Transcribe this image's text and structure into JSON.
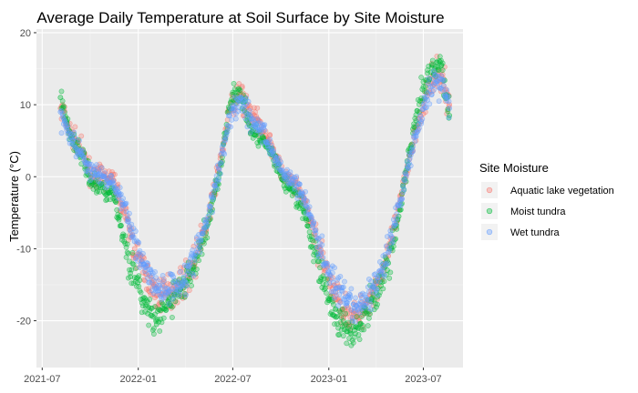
{
  "chart_data": {
    "type": "scatter",
    "title": "Average Daily Temperature at Soil Surface by Site Moisture",
    "xlabel": "",
    "ylabel": "Temperature (°C)",
    "x_ticks": [
      "2021-07",
      "2022-01",
      "2022-07",
      "2023-01",
      "2023-07"
    ],
    "y_ticks": [
      -20,
      -10,
      0,
      10,
      20
    ],
    "xlim": [
      "2021-06-20",
      "2023-09-15"
    ],
    "ylim": [
      -26.5,
      20.5
    ],
    "grid": true,
    "legend": {
      "title": "Site Moisture",
      "position": "right"
    },
    "series": [
      {
        "name": "Aquatic lake vegetation",
        "color": "#F8766D",
        "x": [
          "2021-08-05",
          "2021-08-25",
          "2021-09-15",
          "2021-10-05",
          "2021-10-25",
          "2021-11-15",
          "2021-12-05",
          "2021-12-25",
          "2022-01-15",
          "2022-02-05",
          "2022-02-25",
          "2022-03-15",
          "2022-04-05",
          "2022-04-25",
          "2022-05-15",
          "2022-06-05",
          "2022-06-25",
          "2022-07-15",
          "2022-08-05",
          "2022-08-25",
          "2022-09-15",
          "2022-10-05",
          "2022-10-25",
          "2022-11-15",
          "2022-12-05",
          "2022-12-25",
          "2023-01-15",
          "2023-02-05",
          "2023-02-25",
          "2023-03-15",
          "2023-04-05",
          "2023-04-25",
          "2023-05-15",
          "2023-06-05",
          "2023-06-25",
          "2023-07-15",
          "2023-08-05",
          "2023-08-20"
        ],
        "values": [
          9.5,
          6.0,
          3.5,
          0.0,
          0.0,
          -0.5,
          -5.0,
          -10.0,
          -13.5,
          -16.5,
          -16.0,
          -15.5,
          -14.0,
          -10.5,
          -6.0,
          1.5,
          9.0,
          11.5,
          8.5,
          7.0,
          4.0,
          0.0,
          -1.0,
          -3.5,
          -8.0,
          -13.0,
          -16.5,
          -19.0,
          -19.5,
          -17.5,
          -14.5,
          -11.0,
          -4.5,
          3.0,
          9.0,
          13.0,
          14.0,
          10.0
        ]
      },
      {
        "name": "Moist tundra",
        "color": "#00BA38",
        "x": [
          "2021-08-05",
          "2021-08-25",
          "2021-09-15",
          "2021-10-05",
          "2021-10-25",
          "2021-11-15",
          "2021-12-05",
          "2021-12-25",
          "2022-01-15",
          "2022-02-05",
          "2022-02-25",
          "2022-03-15",
          "2022-04-05",
          "2022-04-25",
          "2022-05-15",
          "2022-06-05",
          "2022-06-25",
          "2022-07-15",
          "2022-08-05",
          "2022-08-25",
          "2022-09-15",
          "2022-10-05",
          "2022-10-25",
          "2022-11-15",
          "2022-12-05",
          "2022-12-25",
          "2023-01-15",
          "2023-02-05",
          "2023-02-25",
          "2023-03-15",
          "2023-04-05",
          "2023-04-25",
          "2023-05-15",
          "2023-06-05",
          "2023-06-25",
          "2023-07-15",
          "2023-08-05",
          "2023-08-20"
        ],
        "values": [
          11.0,
          5.5,
          3.0,
          -1.0,
          -1.5,
          -2.5,
          -9.0,
          -14.0,
          -18.0,
          -20.5,
          -18.0,
          -16.0,
          -14.5,
          -11.0,
          -6.5,
          0.5,
          9.5,
          12.0,
          7.0,
          5.0,
          3.0,
          -0.5,
          -2.0,
          -5.0,
          -10.5,
          -15.5,
          -19.5,
          -21.5,
          -21.0,
          -19.0,
          -15.5,
          -12.0,
          -5.5,
          3.5,
          10.5,
          14.5,
          15.5,
          8.5
        ]
      },
      {
        "name": "Wet tundra",
        "color": "#619CFF",
        "x": [
          "2021-08-05",
          "2021-08-25",
          "2021-09-15",
          "2021-10-05",
          "2021-10-25",
          "2021-11-15",
          "2021-12-05",
          "2021-12-25",
          "2022-01-15",
          "2022-02-05",
          "2022-02-25",
          "2022-03-15",
          "2022-04-05",
          "2022-04-25",
          "2022-05-15",
          "2022-06-05",
          "2022-06-25",
          "2022-07-15",
          "2022-08-05",
          "2022-08-25",
          "2022-09-15",
          "2022-10-05",
          "2022-10-25",
          "2022-11-15",
          "2022-12-05",
          "2022-12-25",
          "2023-01-15",
          "2023-02-05",
          "2023-02-25",
          "2023-03-15",
          "2023-04-05",
          "2023-04-25",
          "2023-05-15",
          "2023-06-05",
          "2023-06-25",
          "2023-07-15",
          "2023-08-05",
          "2023-08-20"
        ],
        "values": [
          9.0,
          5.5,
          3.0,
          0.5,
          0.0,
          -1.0,
          -4.0,
          -9.0,
          -12.5,
          -15.5,
          -15.5,
          -15.0,
          -13.5,
          -10.0,
          -5.5,
          1.0,
          8.5,
          11.0,
          8.0,
          6.5,
          3.5,
          0.5,
          -0.5,
          -3.0,
          -7.5,
          -12.0,
          -15.5,
          -17.5,
          -18.5,
          -17.0,
          -14.0,
          -10.5,
          -4.0,
          2.5,
          8.5,
          12.5,
          13.5,
          9.5
        ]
      }
    ]
  }
}
